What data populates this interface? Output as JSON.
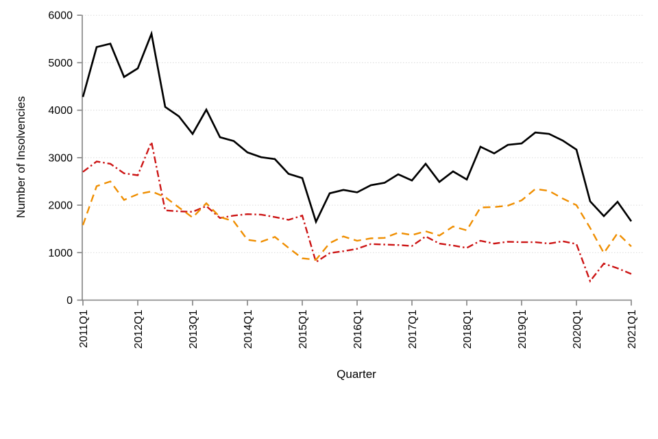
{
  "page": {
    "background": "#ffffff"
  },
  "chart_data": {
    "type": "line",
    "title": "",
    "xlabel": "Quarter",
    "ylabel": "Number of Insolvencies",
    "ylim": [
      0,
      6000
    ],
    "ytick_step": 1000,
    "ytick_labels": [
      "0",
      "1000",
      "2000",
      "3000",
      "4000",
      "5000",
      "6000"
    ],
    "xtick_labels": [
      "2011Q1",
      "2012Q1",
      "2013Q1",
      "2014Q1",
      "2015Q1",
      "2016Q1",
      "2017Q1",
      "2018Q1",
      "2019Q1",
      "2020Q1",
      "2021Q1"
    ],
    "grid": "horizontal-dotted",
    "legend": "none",
    "axis_color": "#808080",
    "gridline_color": "#d9d9d9",
    "categories": [
      "2011Q1",
      "2011Q2",
      "2011Q3",
      "2011Q4",
      "2012Q1",
      "2012Q2",
      "2012Q3",
      "2012Q4",
      "2013Q1",
      "2013Q2",
      "2013Q3",
      "2013Q4",
      "2014Q1",
      "2014Q2",
      "2014Q3",
      "2014Q4",
      "2015Q1",
      "2015Q2",
      "2015Q3",
      "2015Q4",
      "2016Q1",
      "2016Q2",
      "2016Q3",
      "2016Q4",
      "2017Q1",
      "2017Q2",
      "2017Q3",
      "2017Q4",
      "2018Q1",
      "2018Q2",
      "2018Q3",
      "2018Q4",
      "2019Q1",
      "2019Q2",
      "2019Q3",
      "2019Q4",
      "2020Q1",
      "2020Q2",
      "2020Q3",
      "2020Q4",
      "2021Q1"
    ],
    "series": [
      {
        "name": "black-solid-line",
        "color": "#000000",
        "line_style": "solid",
        "line_width": 2.7,
        "values": [
          4280,
          5330,
          5400,
          4700,
          4880,
          5610,
          4070,
          3870,
          3500,
          4010,
          3430,
          3350,
          3110,
          3010,
          2970,
          2660,
          2570,
          1650,
          2250,
          2320,
          2270,
          2420,
          2470,
          2650,
          2520,
          2870,
          2490,
          2710,
          2540,
          3230,
          3090,
          3270,
          3300,
          3530,
          3500,
          3360,
          3170,
          2080,
          1770,
          2070,
          1660
        ]
      },
      {
        "name": "red-dashdot-line",
        "color": "#cc1414",
        "line_style": "dashdot",
        "line_width": 2.4,
        "values": [
          2700,
          2920,
          2870,
          2670,
          2630,
          3330,
          1890,
          1870,
          1860,
          1980,
          1730,
          1780,
          1810,
          1800,
          1750,
          1690,
          1780,
          800,
          990,
          1030,
          1080,
          1180,
          1170,
          1160,
          1140,
          1340,
          1190,
          1150,
          1100,
          1250,
          1190,
          1230,
          1220,
          1220,
          1190,
          1240,
          1180,
          400,
          770,
          670,
          550
        ]
      },
      {
        "name": "orange-dashed-line",
        "color": "#ef8e00",
        "line_style": "dashed",
        "line_width": 2.4,
        "values": [
          1580,
          2400,
          2500,
          2110,
          2230,
          2290,
          2170,
          1950,
          1740,
          2040,
          1750,
          1660,
          1270,
          1230,
          1330,
          1100,
          880,
          850,
          1200,
          1340,
          1250,
          1300,
          1310,
          1420,
          1370,
          1450,
          1360,
          1550,
          1470,
          1950,
          1960,
          1990,
          2100,
          2340,
          2300,
          2140,
          2000,
          1520,
          990,
          1410,
          1130
        ]
      }
    ]
  }
}
